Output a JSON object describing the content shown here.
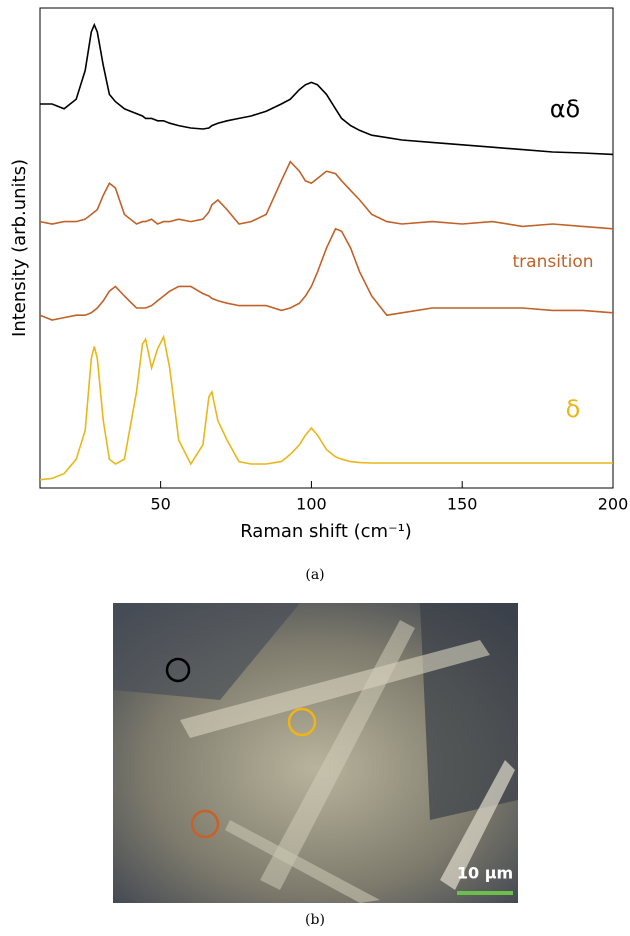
{
  "chart_data": {
    "type": "line",
    "x_label": "Raman shift (cm⁻¹)",
    "y_label": "Intensity (arb.units)",
    "xlim": [
      10,
      200
    ],
    "xticks": [
      50,
      100,
      150,
      200
    ],
    "ylim": [
      0,
      100
    ],
    "x": [
      10,
      14,
      18,
      22,
      25,
      27,
      28,
      29,
      31,
      33,
      35,
      38,
      42,
      44,
      45,
      47,
      49,
      51,
      53,
      56,
      60,
      64,
      66,
      67,
      69,
      72,
      76,
      80,
      85,
      90,
      93,
      96,
      98,
      100,
      102,
      105,
      108,
      110,
      113,
      116,
      120,
      125,
      130,
      140,
      150,
      160,
      170,
      180,
      190,
      200
    ],
    "series": [
      {
        "name": "αδ",
        "color": "#000000",
        "values": [
          80,
          80,
          79,
          81,
          87,
          95,
          96.5,
          95,
          88,
          82,
          80.5,
          79,
          78,
          77.5,
          77,
          77,
          76.5,
          76.5,
          76,
          75.5,
          75,
          74.8,
          75,
          75.5,
          76,
          76.5,
          77,
          77.5,
          78.5,
          80,
          81,
          83,
          84,
          84.5,
          84,
          82,
          79,
          77,
          75.5,
          74.5,
          73.5,
          73,
          72.5,
          72,
          71.5,
          71,
          70.5,
          70,
          69.8,
          69.5
        ]
      },
      {
        "color": "#c0622a",
        "values": [
          55.5,
          55,
          55.5,
          55.5,
          56,
          57,
          57.5,
          58,
          61,
          63.5,
          62.5,
          57,
          55,
          55.5,
          55.5,
          56,
          55,
          55.5,
          55.5,
          56,
          55.5,
          56,
          57.5,
          59,
          60,
          58,
          55,
          55.5,
          57,
          64,
          68,
          66,
          64,
          63.5,
          64.5,
          66,
          65.5,
          64,
          62,
          60,
          57,
          55.5,
          55,
          55.5,
          55,
          55.5,
          54.5,
          55,
          54.5,
          54
        ]
      },
      {
        "name": "transition",
        "color": "#c0622a",
        "values": [
          36,
          35,
          35.5,
          36,
          36,
          36.5,
          37,
          37.5,
          39,
          41,
          42,
          40,
          37.5,
          37.5,
          37.5,
          38,
          39,
          40,
          41,
          42,
          42,
          40.5,
          40,
          39.5,
          39,
          38.5,
          38,
          38,
          38,
          37,
          37.5,
          38.5,
          40,
          42,
          45,
          50,
          54,
          53.5,
          50,
          45,
          40,
          36,
          36.5,
          37.5,
          37.5,
          37.5,
          37.5,
          37,
          37,
          36.5
        ]
      },
      {
        "name": "δ",
        "color": "#e8b719",
        "values": [
          1.7,
          2,
          3,
          6,
          12,
          27,
          29.5,
          27,
          14,
          6,
          5,
          6,
          20,
          30,
          31,
          25,
          29,
          31.5,
          25,
          10,
          5,
          9,
          19,
          20,
          14,
          10,
          5.5,
          5,
          5,
          5.5,
          7,
          9,
          11,
          12.5,
          11,
          8,
          6.5,
          6,
          5.5,
          5.3,
          5.2,
          5.2,
          5.2,
          5.2,
          5.2,
          5.2,
          5.2,
          5.2,
          5.2,
          5.2
        ]
      }
    ]
  },
  "captions": [
    "(a)",
    "(b)"
  ],
  "image": {
    "scale_bar": "10 μm"
  }
}
